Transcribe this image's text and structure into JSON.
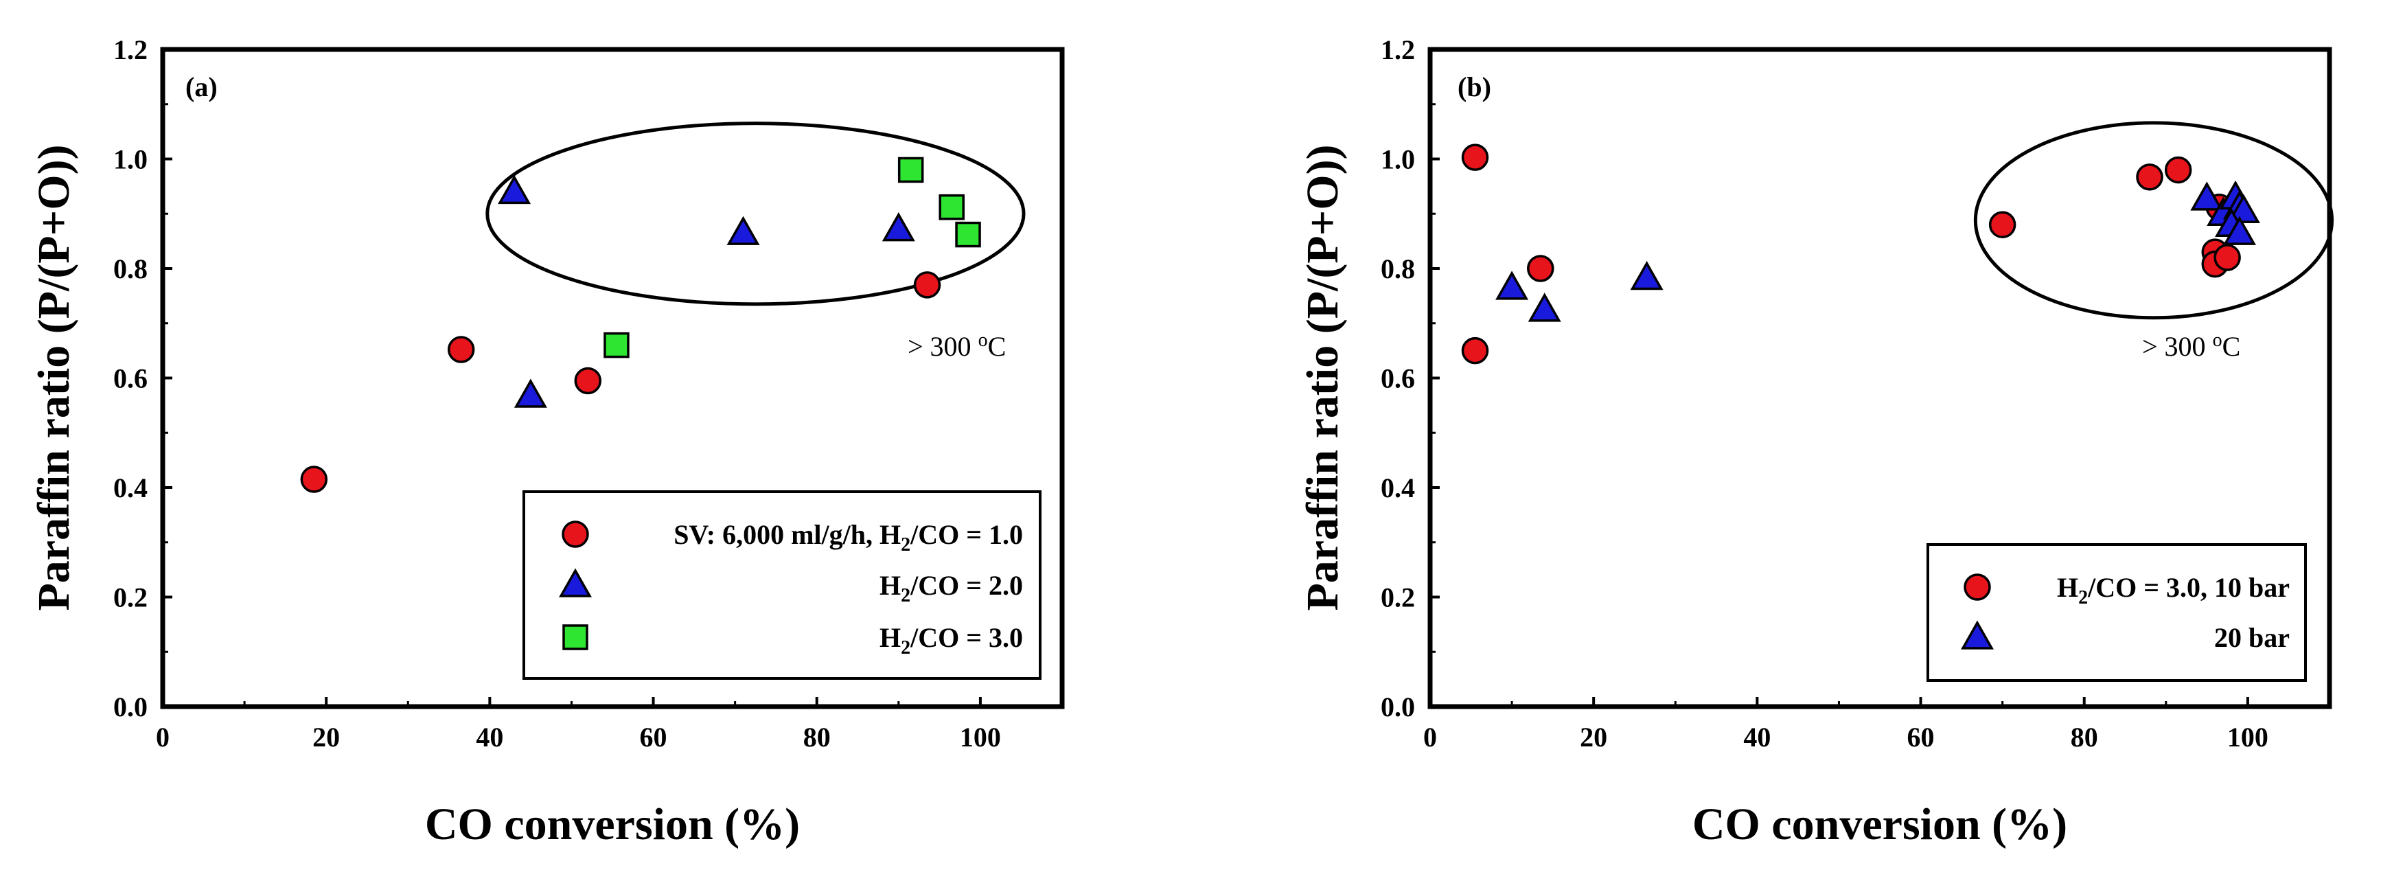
{
  "chart_data": [
    {
      "type": "scatter",
      "panel_label": "(a)",
      "xlabel": "CO conversion (%)",
      "ylabel": "Paraffin ratio (P/(P+O))",
      "xlim": [
        0,
        110
      ],
      "ylim": [
        0,
        1.2
      ],
      "xticks": [
        "0",
        "20",
        "40",
        "60",
        "80",
        "100"
      ],
      "yticks": [
        "0.0",
        "0.2",
        "0.4",
        "0.6",
        "0.8",
        "1.0",
        "1.2"
      ],
      "annotation": {
        "text": "> 300 ",
        "sup": "o",
        "unit": "C"
      },
      "ellipse": {
        "cx": 72.5,
        "cy": 0.9,
        "rx": 32.8,
        "ry": 0.165
      },
      "series": [
        {
          "name": "SV: 6,000 ml/g/h, H2/CO = 1.0",
          "legend_parts": [
            "SV: 6,000 ml/g/h, H",
            "2",
            "/CO = 1.0"
          ],
          "marker": "circle",
          "color": "#e8141c",
          "x": [
            18.5,
            36.5,
            52,
            93.5
          ],
          "y": [
            0.415,
            0.652,
            0.595,
            0.77
          ]
        },
        {
          "name": "H2/CO = 2.0",
          "legend_parts": [
            "H",
            "2",
            "/CO = 2.0"
          ],
          "marker": "triangle",
          "color": "#1a1adc",
          "x": [
            43,
            45,
            71,
            90
          ],
          "y": [
            0.94,
            0.568,
            0.865,
            0.872
          ]
        },
        {
          "name": "H2/CO = 3.0",
          "legend_parts": [
            "H",
            "2",
            "/CO = 3.0"
          ],
          "marker": "square",
          "color": "#2ee632",
          "x": [
            55.5,
            91.5,
            96.5,
            98.5
          ],
          "y": [
            0.66,
            0.98,
            0.912,
            0.862
          ]
        }
      ]
    },
    {
      "type": "scatter",
      "panel_label": "(b)",
      "xlabel": "CO conversion (%)",
      "ylabel": "Paraffin ratio (P/(P+O))",
      "xlim": [
        0,
        110
      ],
      "ylim": [
        0,
        1.2
      ],
      "xticks": [
        "0",
        "20",
        "40",
        "60",
        "80",
        "100"
      ],
      "yticks": [
        "0.0",
        "0.2",
        "0.4",
        "0.6",
        "0.8",
        "1.0",
        "1.2"
      ],
      "annotation": {
        "text": "> 300 ",
        "sup": "o",
        "unit": "C"
      },
      "ellipse": {
        "cx": 88.5,
        "cy": 0.888,
        "rx": 21.8,
        "ry": 0.178
      },
      "series": [
        {
          "name": "H2/CO = 3.0, 10 bar",
          "legend_parts": [
            "H",
            "2",
            "/CO = 3.0, 10 bar"
          ],
          "marker": "circle",
          "color": "#e8141c",
          "x": [
            5.5,
            5.5,
            13.5,
            70,
            88,
            91.5,
            96,
            96,
            96.5,
            97.5
          ],
          "y": [
            1.003,
            0.65,
            0.8,
            0.88,
            0.967,
            0.98,
            0.83,
            0.808,
            0.912,
            0.82
          ]
        },
        {
          "name": "20 bar",
          "legend_parts": [
            "20 bar"
          ],
          "marker": "triangle",
          "color": "#1a1adc",
          "x": [
            10,
            14,
            26.5,
            95,
            97,
            98.5,
            99,
            99.5,
            98,
            99
          ],
          "y": [
            0.765,
            0.725,
            0.783,
            0.928,
            0.9,
            0.93,
            0.912,
            0.905,
            0.88,
            0.865
          ]
        }
      ]
    }
  ]
}
